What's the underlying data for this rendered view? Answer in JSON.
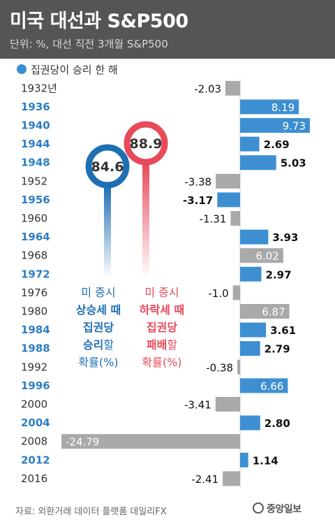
{
  "header": {
    "title": "미국 대선과 S&P500",
    "subtitle": "단위: %, 대선 직전 3개월 S&P500"
  },
  "legend": {
    "label": "집권당이 승리 한 해",
    "color": "#3d8fd1"
  },
  "colors": {
    "win_bar": "#3d8fd1",
    "loss_bar": "#a9a9a9",
    "win_year": "#2d7ec4",
    "loss_year": "#333333",
    "blue_pin": "#1f6fb3",
    "red_pin": "#e84a5a",
    "header_bg": "#555555"
  },
  "chart_data": {
    "type": "bar",
    "orientation": "horizontal",
    "categories": [
      "1932년",
      "1936",
      "1940",
      "1944",
      "1948",
      "1952",
      "1956",
      "1960",
      "1964",
      "1968",
      "1972",
      "1976",
      "1980",
      "1984",
      "1988",
      "1992",
      "1996",
      "2000",
      "2004",
      "2008",
      "2012",
      "2016"
    ],
    "values": [
      -2.03,
      8.19,
      9.73,
      2.69,
      5.03,
      -3.38,
      -3.17,
      -1.31,
      3.93,
      6.02,
      2.97,
      -1.0,
      6.87,
      3.61,
      2.79,
      -0.38,
      6.66,
      -3.41,
      2.8,
      -24.79,
      1.14,
      -2.41
    ],
    "value_labels": [
      "-2.03",
      "8.19",
      "9.73",
      "2.69",
      "5.03",
      "-3.38",
      "-3.17",
      "-1.31",
      "3.93",
      "6.02",
      "2.97",
      "-1.0",
      "6.87",
      "3.61",
      "2.79",
      "-0.38",
      "6.66",
      "-3.41",
      "2.80",
      "-24.79",
      "1.14",
      "-2.41"
    ],
    "incumbent_party_won": [
      false,
      true,
      true,
      true,
      true,
      false,
      true,
      false,
      true,
      false,
      true,
      false,
      false,
      true,
      true,
      false,
      true,
      false,
      true,
      false,
      true,
      false
    ],
    "label_style": [
      "outside",
      "inside",
      "inside",
      "outside-bold",
      "outside-bold",
      "outside",
      "outside-bold",
      "outside",
      "outside-bold",
      "inside",
      "outside-bold",
      "outside",
      "inside",
      "outside-bold",
      "outside-bold",
      "outside",
      "inside",
      "outside",
      "outside-bold",
      "inside",
      "outside-bold",
      "outside"
    ],
    "xlim": [
      -24.79,
      9.73
    ]
  },
  "pins": [
    {
      "value": "84.6",
      "color": "#1f6fb3",
      "caption": [
        {
          "parts": [
            {
              "text": "미 증시",
              "bold": false
            }
          ]
        },
        {
          "parts": [
            {
              "text": "상승세 때",
              "bold": true
            }
          ]
        },
        {
          "parts": [
            {
              "text": "집권당",
              "bold": true
            }
          ]
        },
        {
          "parts": [
            {
              "text": "승리",
              "bold": true
            },
            {
              "text": "할",
              "bold": false
            }
          ]
        },
        {
          "parts": [
            {
              "text": "확률(%)",
              "bold": false
            }
          ]
        }
      ]
    },
    {
      "value": "88.9",
      "color": "#e84a5a",
      "caption": [
        {
          "parts": [
            {
              "text": "미 증시",
              "bold": false
            }
          ]
        },
        {
          "parts": [
            {
              "text": "하락세 때",
              "bold": true
            }
          ]
        },
        {
          "parts": [
            {
              "text": "집권당",
              "bold": true
            }
          ]
        },
        {
          "parts": [
            {
              "text": "패배",
              "bold": true
            },
            {
              "text": "할",
              "bold": false
            }
          ]
        },
        {
          "parts": [
            {
              "text": "확률(%)",
              "bold": false
            }
          ]
        }
      ]
    }
  ],
  "footer": {
    "source": "자료: 외환거래 데이터 플랫폼 데일리FX",
    "logo": "중앙일보"
  }
}
